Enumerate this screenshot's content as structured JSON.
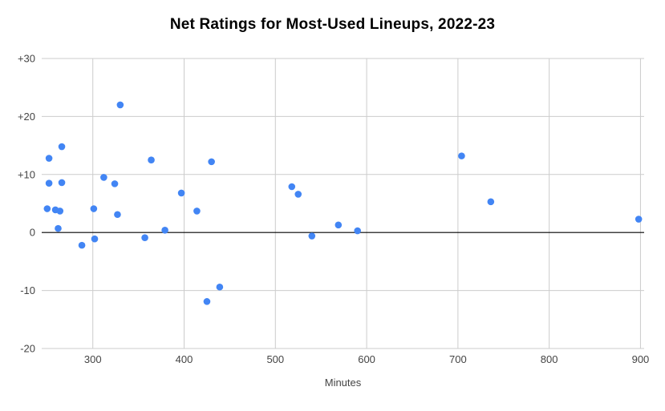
{
  "chart_data": {
    "type": "scatter",
    "title": "Net Ratings for Most-Used Lineups, 2022-23",
    "xlabel": "Minutes",
    "ylabel": "",
    "xlim": [
      244,
      904
    ],
    "ylim": [
      -20,
      30
    ],
    "grid": true,
    "legend": "none",
    "x_ticks": [
      {
        "v": 300,
        "label": "300"
      },
      {
        "v": 400,
        "label": "400"
      },
      {
        "v": 500,
        "label": "500"
      },
      {
        "v": 600,
        "label": "600"
      },
      {
        "v": 700,
        "label": "700"
      },
      {
        "v": 800,
        "label": "800"
      },
      {
        "v": 900,
        "label": "900"
      }
    ],
    "y_ticks": [
      {
        "v": -20,
        "label": "-20"
      },
      {
        "v": -10,
        "label": "-10"
      },
      {
        "v": 0,
        "label": "0"
      },
      {
        "v": 10,
        "label": "+10"
      },
      {
        "v": 20,
        "label": "+20"
      },
      {
        "v": 30,
        "label": "+30"
      }
    ],
    "series": [
      {
        "name": "Net Rating",
        "points": [
          [
            250,
            4.1
          ],
          [
            252,
            12.8
          ],
          [
            252,
            8.5
          ],
          [
            259,
            3.9
          ],
          [
            262,
            0.7
          ],
          [
            264,
            3.7
          ],
          [
            266,
            14.8
          ],
          [
            266,
            8.6
          ],
          [
            288,
            -2.2
          ],
          [
            301,
            4.1
          ],
          [
            302,
            -1.1
          ],
          [
            312,
            9.5
          ],
          [
            324,
            8.4
          ],
          [
            327,
            3.1
          ],
          [
            330,
            22.0
          ],
          [
            357,
            -0.9
          ],
          [
            364,
            12.5
          ],
          [
            379,
            0.4
          ],
          [
            397,
            6.8
          ],
          [
            414,
            3.7
          ],
          [
            425,
            -11.9
          ],
          [
            430,
            12.2
          ],
          [
            439,
            -9.4
          ],
          [
            518,
            7.9
          ],
          [
            525,
            6.6
          ],
          [
            540,
            -0.6
          ],
          [
            569,
            1.3
          ],
          [
            590,
            0.3
          ],
          [
            704,
            13.2
          ],
          [
            736,
            5.3
          ],
          [
            898,
            2.3
          ]
        ]
      }
    ],
    "colors": {
      "point": "#4285f4",
      "grid": "#cccccc",
      "zero_line": "#000000",
      "tick_label": "#444444",
      "title": "#000000"
    }
  }
}
